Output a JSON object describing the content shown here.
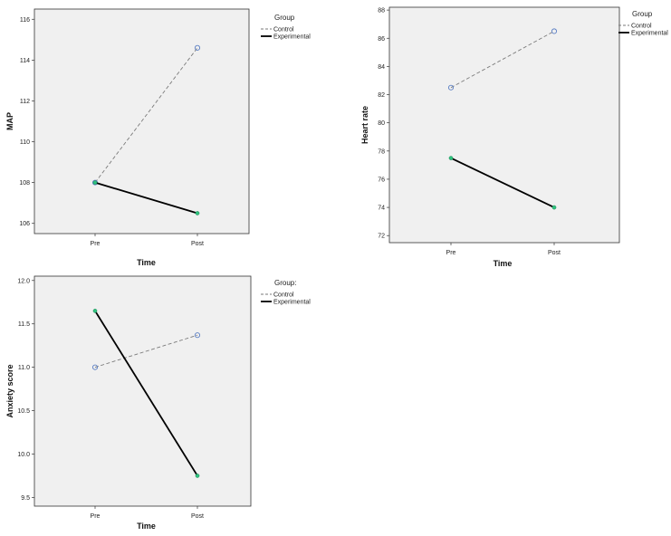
{
  "chart_data": [
    {
      "type": "line",
      "categories": [
        "Pre",
        "Post"
      ],
      "xlabel": "Time",
      "ylabel": "MAP",
      "ylim": [
        105.5,
        116.5
      ],
      "yticks": [
        "106",
        "108",
        "110",
        "112",
        "114",
        "116"
      ],
      "grid": false,
      "legend_title": "Group",
      "legend_position": "right",
      "series": [
        {
          "name": "Control",
          "values": [
            108.0,
            114.6
          ],
          "style": "dashed",
          "color": "#7a7a7a",
          "marker": "open-circle",
          "marker_color": "#5b7fc4"
        },
        {
          "name": "Experimental",
          "values": [
            108.0,
            106.5
          ],
          "style": "solid",
          "color": "#000000",
          "marker": "dot",
          "marker_color": "#2ec27e"
        }
      ]
    },
    {
      "type": "line",
      "categories": [
        "Pre",
        "Post"
      ],
      "xlabel": "Time",
      "ylabel": "Heart rate",
      "ylim": [
        71.5,
        88.2
      ],
      "yticks": [
        "72",
        "74",
        "76",
        "78",
        "80",
        "82",
        "84",
        "86",
        "88"
      ],
      "grid": false,
      "legend_title": "Group",
      "legend_position": "right",
      "series": [
        {
          "name": "Control",
          "values": [
            82.5,
            86.5
          ],
          "style": "dashed",
          "color": "#7a7a7a",
          "marker": "open-circle",
          "marker_color": "#5b7fc4"
        },
        {
          "name": "Experimental",
          "values": [
            77.5,
            74.0
          ],
          "style": "solid",
          "color": "#000000",
          "marker": "dot",
          "marker_color": "#2ec27e"
        }
      ]
    },
    {
      "type": "line",
      "categories": [
        "Pre",
        "Post"
      ],
      "xlabel": "Time",
      "ylabel": "Anxiety score",
      "ylim": [
        9.4,
        12.05
      ],
      "yticks": [
        "9.5",
        "10.0",
        "10.5",
        "11.0",
        "11.5",
        "12.0"
      ],
      "grid": false,
      "legend_title": "Group:",
      "legend_position": "right",
      "series": [
        {
          "name": "Control",
          "values": [
            11.0,
            11.37
          ],
          "style": "dashed",
          "color": "#7a7a7a",
          "marker": "open-circle",
          "marker_color": "#5b7fc4"
        },
        {
          "name": "Experimental",
          "values": [
            11.65,
            9.75
          ],
          "style": "solid",
          "color": "#000000",
          "marker": "dot",
          "marker_color": "#2ec27e"
        }
      ]
    }
  ]
}
